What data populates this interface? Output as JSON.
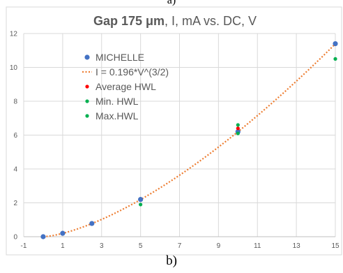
{
  "captions": {
    "top": "a)",
    "bottom": "b)"
  },
  "chart_data": {
    "type": "scatter",
    "title_bold": "Gap 175 μm",
    "title_rest": ", I, mA vs. DC, V",
    "xlabel": "",
    "ylabel": "",
    "xlim": [
      -1,
      15
    ],
    "ylim": [
      0,
      12
    ],
    "xticks": [
      -1,
      1,
      3,
      5,
      7,
      9,
      11,
      13,
      15
    ],
    "yticks": [
      0,
      2,
      4,
      6,
      8,
      10,
      12
    ],
    "grid": true,
    "legend_position": "top-left",
    "series": [
      {
        "name": "MICHELLE",
        "kind": "points",
        "color": "#4472c4",
        "x": [
          0,
          1,
          2.5,
          5,
          10,
          15
        ],
        "y": [
          0,
          0.2,
          0.78,
          2.2,
          6.2,
          11.4
        ]
      },
      {
        "name": "I = 0.196*V^(3/2)",
        "kind": "fit",
        "color": "#ed7d31",
        "coefficient": 0.196,
        "exponent": 1.5,
        "x_range": [
          0,
          15
        ]
      },
      {
        "name": "Average HWL",
        "kind": "points",
        "color": "#ff0000",
        "x": [
          10
        ],
        "y": [
          6.4
        ]
      },
      {
        "name": "Min. HWL",
        "kind": "points",
        "color": "#00b050",
        "x": [
          5,
          10,
          15
        ],
        "y": [
          1.9,
          6.1,
          10.5
        ]
      },
      {
        "name": "Max.HWL",
        "kind": "points",
        "color": "#00b050",
        "x": [
          10
        ],
        "y": [
          6.6
        ]
      }
    ]
  }
}
